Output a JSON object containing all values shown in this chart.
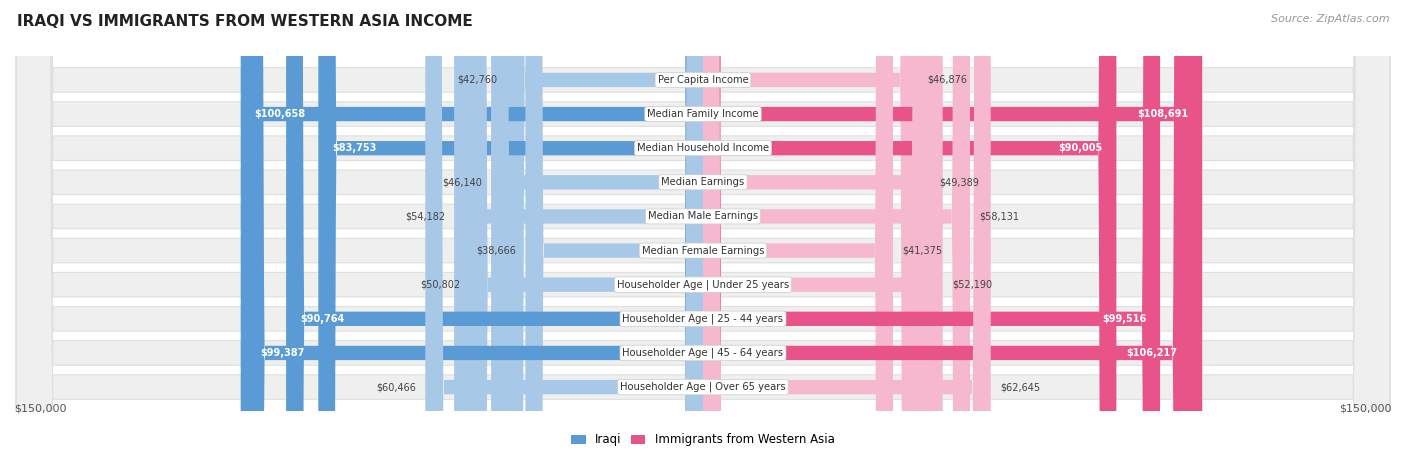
{
  "title": "IRAQI VS IMMIGRANTS FROM WESTERN ASIA INCOME",
  "source": "Source: ZipAtlas.com",
  "categories": [
    "Per Capita Income",
    "Median Family Income",
    "Median Household Income",
    "Median Earnings",
    "Median Male Earnings",
    "Median Female Earnings",
    "Householder Age | Under 25 years",
    "Householder Age | 25 - 44 years",
    "Householder Age | 45 - 64 years",
    "Householder Age | Over 65 years"
  ],
  "iraqi_values": [
    42760,
    100658,
    83753,
    46140,
    54182,
    38666,
    50802,
    90764,
    99387,
    60466
  ],
  "western_asia_values": [
    46876,
    108691,
    90005,
    49389,
    58131,
    41375,
    52190,
    99516,
    106217,
    62645
  ],
  "iraqi_labels": [
    "$42,760",
    "$100,658",
    "$83,753",
    "$46,140",
    "$54,182",
    "$38,666",
    "$50,802",
    "$90,764",
    "$99,387",
    "$60,466"
  ],
  "western_asia_labels": [
    "$46,876",
    "$108,691",
    "$90,005",
    "$49,389",
    "$58,131",
    "$41,375",
    "$52,190",
    "$99,516",
    "$106,217",
    "$62,645"
  ],
  "max_value": 150000,
  "iraqi_color_light": "#a8c8e8",
  "iraqi_color_dark": "#5b9bd5",
  "western_asia_color_light": "#f5b8ce",
  "western_asia_color_dark": "#e8538a",
  "iraqi_threshold": 75000,
  "western_asia_threshold": 75000,
  "row_bg_color": "#efefef",
  "row_border_color": "#e0e0e0",
  "fig_width": 14.06,
  "fig_height": 4.67,
  "dpi": 100
}
